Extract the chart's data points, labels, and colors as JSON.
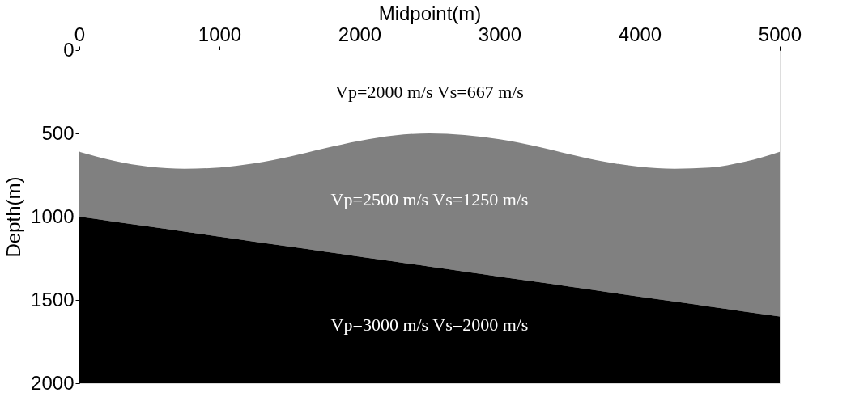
{
  "chart_data": {
    "type": "area",
    "xlabel": "Midpoint(m)",
    "ylabel": "Depth(m)",
    "x": [
      0,
      250,
      500,
      750,
      1000,
      1250,
      1500,
      1750,
      2000,
      2250,
      2500,
      2750,
      3000,
      3250,
      3500,
      3750,
      4000,
      4250,
      4500,
      4750,
      5000
    ],
    "series": [
      {
        "color": "#ffffff",
        "values": [
          610,
          665,
          700,
          712,
          705,
          680,
          640,
          590,
          545,
          512,
          500,
          510,
          535,
          575,
          625,
          670,
          700,
          712,
          705,
          670,
          610
        ]
      },
      {
        "color": "#808080",
        "values": [
          390,
          365,
          360,
          378,
          415,
          470,
          540,
          620,
          695,
          758,
          800,
          820,
          825,
          815,
          795,
          780,
          780,
          798,
          835,
          900,
          990
        ]
      },
      {
        "color": "#000000",
        "values": [
          1000,
          970,
          940,
          910,
          880,
          850,
          820,
          790,
          760,
          730,
          700,
          670,
          640,
          610,
          580,
          550,
          520,
          490,
          460,
          430,
          400
        ]
      }
    ],
    "stacked": true,
    "xlim": [
      0,
      5000
    ],
    "xticks": [
      0,
      1000,
      2000,
      3000,
      4000,
      5000
    ],
    "ylim": [
      2000,
      0
    ],
    "yticks": [
      0,
      500,
      1000,
      1500,
      2000
    ],
    "grid": false,
    "annotations": [
      "Vp=2000 m/s    Vs=667 m/s",
      "Vp=2500 m/s    Vs=1250 m/s",
      "Vp=3000 m/s    Vs=2000 m/s"
    ]
  }
}
